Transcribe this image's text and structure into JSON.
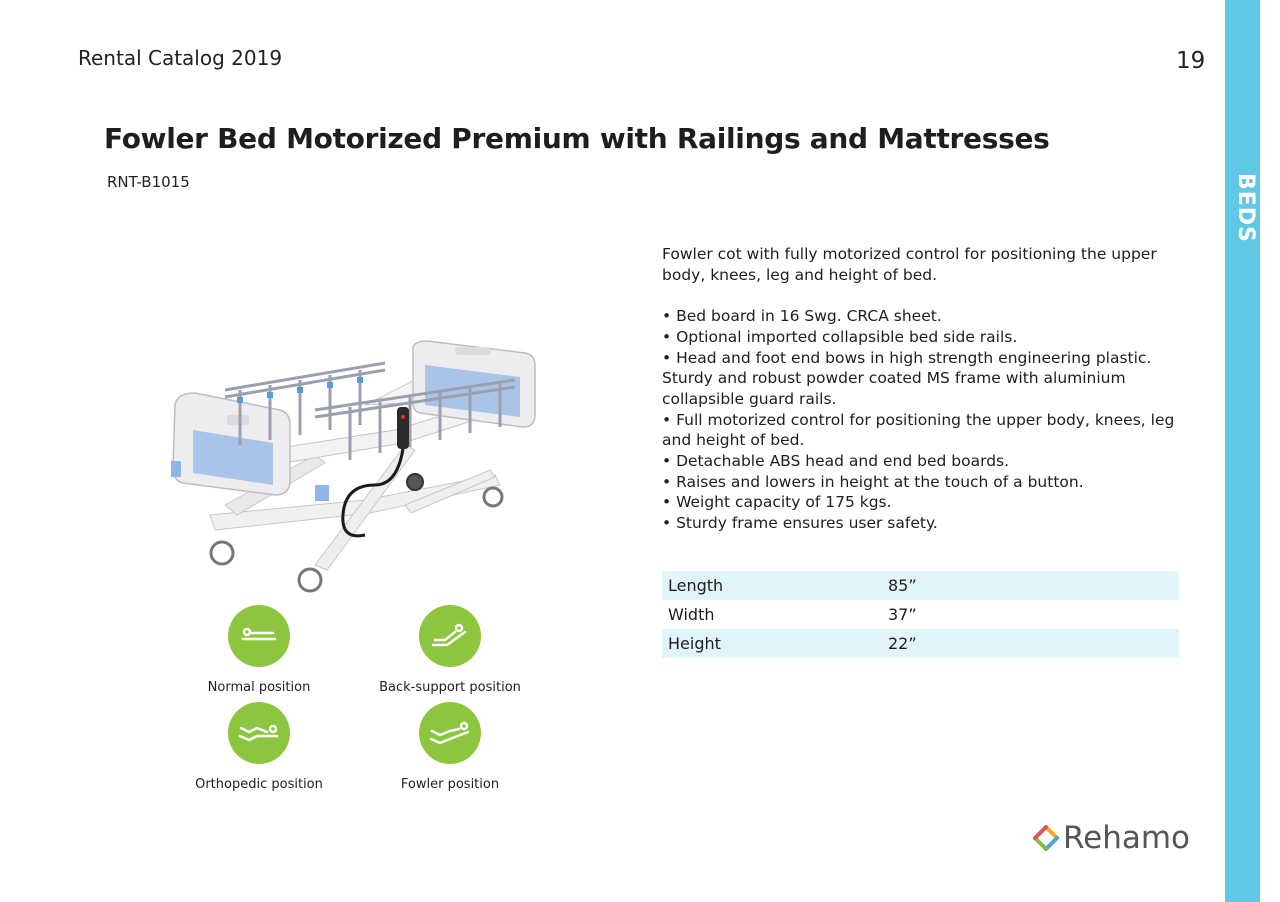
{
  "header": {
    "catalog_title": "Rental Catalog 2019",
    "page_number": "19",
    "side_label": "BEDS"
  },
  "product": {
    "title": "Fowler Bed Motorized Premium with Railings and Mattresses",
    "code": "RNT-B1015",
    "intro": "Fowler cot with fully motorized control for positioning the upper body, knees, leg and height of bed.",
    "features": [
      "• Bed board in 16 Swg. CRCA sheet.",
      "• Optional imported collapsible bed side rails.",
      "• Head and foot end bows in high strength engineering plastic. Sturdy and robust powder coated MS frame with aluminium collapsible guard rails.",
      "• Full motorized control for positioning the upper body, knees, leg and height of bed.",
      "• Detachable ABS head and end bed boards.",
      "• Raises and lowers in height at the touch of a button.",
      "• Weight capacity of 175 kgs.",
      "• Sturdy frame ensures user safety."
    ]
  },
  "positions": [
    {
      "label": "Normal position",
      "icon": "normal-position-icon"
    },
    {
      "label": "Back-support position",
      "icon": "back-support-position-icon"
    },
    {
      "label": "Orthopedic position",
      "icon": "orthopedic-position-icon"
    },
    {
      "label": "Fowler position",
      "icon": "fowler-position-icon"
    }
  ],
  "specs": [
    {
      "name": "Length",
      "value": "85”"
    },
    {
      "name": "Width",
      "value": "37”"
    },
    {
      "name": "Height",
      "value": "22”"
    }
  ],
  "brand": {
    "name": "Rehamo"
  },
  "colors": {
    "accent": "#5ec8e5",
    "icon_green": "#8cc63f",
    "table_shade": "#e1f4fa"
  }
}
